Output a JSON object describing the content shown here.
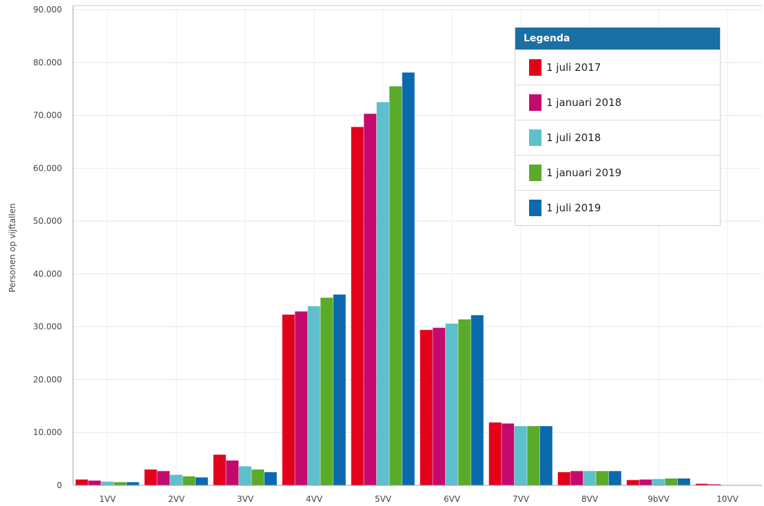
{
  "chart_data": {
    "type": "bar",
    "ylabel": "Personen op vijftallen",
    "ylim": [
      0,
      90000
    ],
    "y_ticks": [
      "0",
      "10.000",
      "20.000",
      "30.000",
      "40.000",
      "50.000",
      "60.000",
      "70.000",
      "80.000",
      "90.000"
    ],
    "categories": [
      "1VV",
      "2VV",
      "3VV",
      "4VV",
      "5VV",
      "6VV",
      "7VV",
      "8VV",
      "9bVV",
      "10VV"
    ],
    "grid": true,
    "legend_title": "Legenda",
    "legend_position": "top-right",
    "series": [
      {
        "name": "1 juli 2017",
        "color": "#e3001b",
        "values": [
          1100,
          3000,
          5800,
          32300,
          67800,
          29400,
          11900,
          2500,
          1000,
          300
        ]
      },
      {
        "name": "1 januari 2018",
        "color": "#c40a6e",
        "values": [
          900,
          2700,
          4700,
          32900,
          70300,
          29800,
          11700,
          2700,
          1100,
          200
        ]
      },
      {
        "name": "1 juli 2018",
        "color": "#5ec0cc",
        "values": [
          700,
          2000,
          3600,
          33900,
          72500,
          30600,
          11200,
          2700,
          1200,
          50
        ]
      },
      {
        "name": "1 januari 2019",
        "color": "#5aab2a",
        "values": [
          600,
          1700,
          3000,
          35500,
          75500,
          31400,
          11200,
          2700,
          1300,
          30
        ]
      },
      {
        "name": "1 juli 2019",
        "color": "#0b6aae",
        "values": [
          600,
          1500,
          2500,
          36100,
          78100,
          32200,
          11200,
          2700,
          1300,
          20
        ]
      }
    ]
  }
}
